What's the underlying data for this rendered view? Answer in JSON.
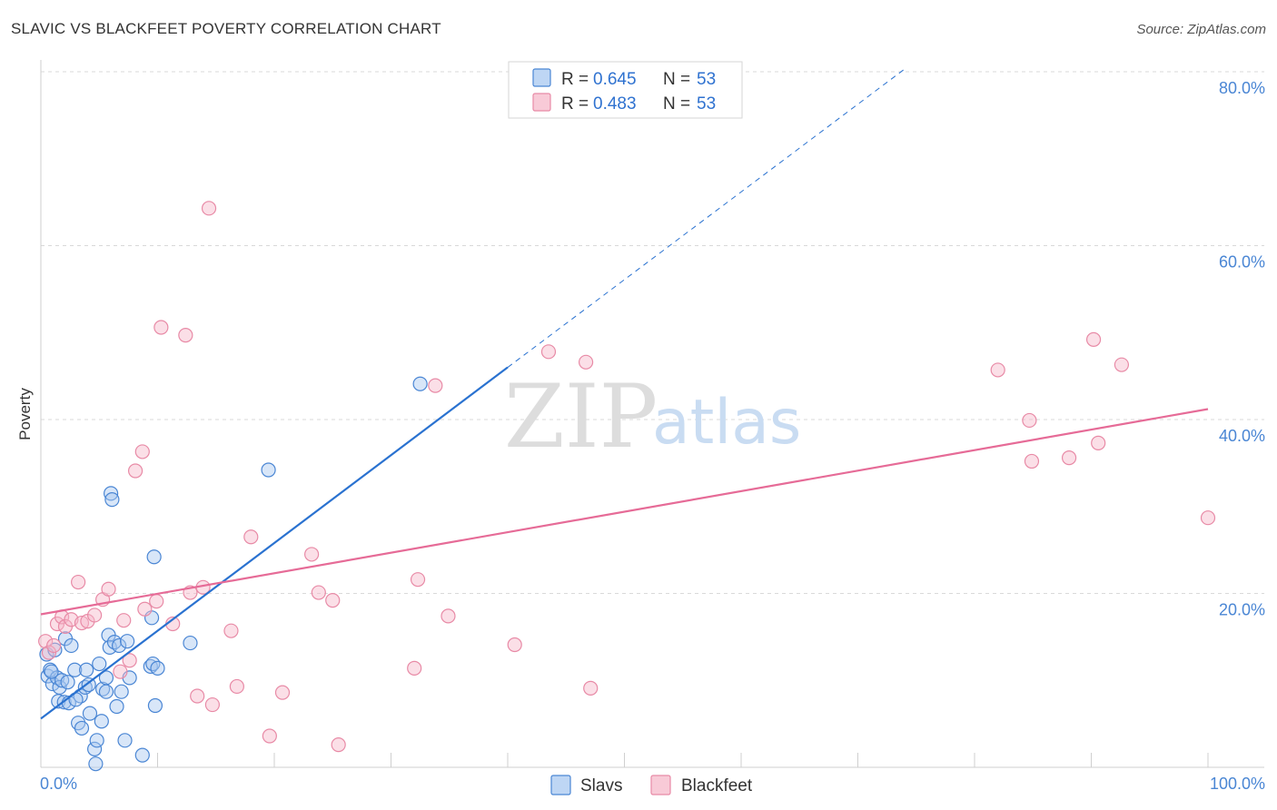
{
  "title": "SLAVIC VS BLACKFEET POVERTY CORRELATION CHART",
  "source": "Source: ZipAtlas.com",
  "watermark": {
    "zip": "ZIP",
    "atlas": "atlas"
  },
  "legend_top": [
    {
      "r_label": "R = ",
      "r_value": "0.645",
      "n_label": "N = ",
      "n_value": "53",
      "color": "#a8c8f0"
    },
    {
      "r_label": "R = ",
      "r_value": "0.483",
      "n_label": "N = ",
      "n_value": "53",
      "color": "#f6b8c9"
    }
  ],
  "legend_bottom": [
    {
      "label": "Slavs",
      "color": "#a8c8f0"
    },
    {
      "label": "Blackfeet",
      "color": "#f6b8c9"
    }
  ],
  "chart_data": {
    "type": "scatter",
    "title": "SLAVIC VS BLACKFEET POVERTY CORRELATION CHART",
    "xlabel": "",
    "ylabel": "Poverty",
    "xlim": [
      0,
      100
    ],
    "ylim": [
      0,
      80
    ],
    "x_tick_labels": [
      "0.0%",
      "100.0%"
    ],
    "y_ticks": [
      20,
      40,
      60,
      80
    ],
    "y_tick_labels": [
      "20.0%",
      "40.0%",
      "60.0%",
      "80.0%"
    ],
    "grid": true,
    "series": [
      {
        "name": "Slavs",
        "color": "#4a86d4",
        "fill": "#a8c8f0",
        "trend": {
          "x0": 0,
          "y0": 5.6,
          "x1": 40,
          "y1": 46.0,
          "dash_to_x": 74,
          "dash_to_y": 80.3,
          "color": "#2a72d0"
        },
        "points": [
          [
            0.5,
            13.0
          ],
          [
            0.6,
            10.5
          ],
          [
            0.8,
            11.2
          ],
          [
            1.0,
            9.6
          ],
          [
            1.4,
            10.3
          ],
          [
            1.6,
            9.2
          ],
          [
            1.8,
            10.0
          ],
          [
            1.5,
            7.6
          ],
          [
            2.0,
            7.5
          ],
          [
            2.4,
            7.4
          ],
          [
            2.1,
            14.8
          ],
          [
            2.6,
            14.0
          ],
          [
            2.9,
            11.2
          ],
          [
            3.2,
            5.1
          ],
          [
            3.5,
            4.5
          ],
          [
            3.4,
            8.2
          ],
          [
            3.8,
            9.2
          ],
          [
            3.9,
            11.2
          ],
          [
            4.2,
            6.2
          ],
          [
            4.6,
            2.1
          ],
          [
            4.7,
            0.4
          ],
          [
            4.8,
            3.1
          ],
          [
            5.0,
            11.9
          ],
          [
            5.3,
            9.0
          ],
          [
            5.6,
            8.7
          ],
          [
            5.2,
            5.3
          ],
          [
            5.6,
            10.3
          ],
          [
            5.8,
            15.2
          ],
          [
            5.9,
            13.8
          ],
          [
            6.0,
            31.5
          ],
          [
            6.1,
            30.8
          ],
          [
            6.3,
            14.4
          ],
          [
            6.5,
            7.0
          ],
          [
            6.7,
            14.0
          ],
          [
            6.9,
            8.7
          ],
          [
            7.2,
            3.1
          ],
          [
            7.4,
            14.5
          ],
          [
            7.6,
            10.3
          ],
          [
            8.7,
            1.4
          ],
          [
            9.4,
            11.6
          ],
          [
            9.5,
            17.2
          ],
          [
            9.6,
            11.9
          ],
          [
            9.7,
            24.2
          ],
          [
            9.8,
            7.1
          ],
          [
            10.0,
            11.4
          ],
          [
            12.8,
            14.3
          ],
          [
            19.5,
            34.2
          ],
          [
            32.5,
            44.1
          ],
          [
            1.2,
            13.5
          ],
          [
            0.9,
            11.0
          ],
          [
            2.3,
            9.8
          ],
          [
            4.1,
            9.5
          ],
          [
            3.0,
            7.8
          ]
        ]
      },
      {
        "name": "Blackfeet",
        "color": "#e88aa6",
        "fill": "#f6b8c9",
        "trend": {
          "x0": 0,
          "y0": 17.6,
          "x1": 100,
          "y1": 41.2,
          "color": "#e66b97"
        },
        "points": [
          [
            0.4,
            14.5
          ],
          [
            0.7,
            13.2
          ],
          [
            1.1,
            14.0
          ],
          [
            1.4,
            16.5
          ],
          [
            1.8,
            17.3
          ],
          [
            2.1,
            16.2
          ],
          [
            2.6,
            17.0
          ],
          [
            3.2,
            21.3
          ],
          [
            3.5,
            16.6
          ],
          [
            4.0,
            16.8
          ],
          [
            4.6,
            17.5
          ],
          [
            5.3,
            19.3
          ],
          [
            5.8,
            20.5
          ],
          [
            7.1,
            16.9
          ],
          [
            7.6,
            12.3
          ],
          [
            8.1,
            34.1
          ],
          [
            8.7,
            36.3
          ],
          [
            8.9,
            18.2
          ],
          [
            9.9,
            19.1
          ],
          [
            10.3,
            50.6
          ],
          [
            11.3,
            16.5
          ],
          [
            12.4,
            49.7
          ],
          [
            12.8,
            20.1
          ],
          [
            13.4,
            8.2
          ],
          [
            13.9,
            20.7
          ],
          [
            14.4,
            64.3
          ],
          [
            14.7,
            7.2
          ],
          [
            16.3,
            15.7
          ],
          [
            16.8,
            9.3
          ],
          [
            18.0,
            26.5
          ],
          [
            19.6,
            3.6
          ],
          [
            20.7,
            8.6
          ],
          [
            23.2,
            24.5
          ],
          [
            23.8,
            20.1
          ],
          [
            25.0,
            19.2
          ],
          [
            25.5,
            2.6
          ],
          [
            32.0,
            11.4
          ],
          [
            32.3,
            21.6
          ],
          [
            33.8,
            43.9
          ],
          [
            34.9,
            17.4
          ],
          [
            40.6,
            14.1
          ],
          [
            43.5,
            47.8
          ],
          [
            46.7,
            46.6
          ],
          [
            47.1,
            9.1
          ],
          [
            82.0,
            45.7
          ],
          [
            84.7,
            39.9
          ],
          [
            84.9,
            35.2
          ],
          [
            88.1,
            35.6
          ],
          [
            90.2,
            49.2
          ],
          [
            90.6,
            37.3
          ],
          [
            92.6,
            46.3
          ],
          [
            100.0,
            28.7
          ],
          [
            6.8,
            11.0
          ]
        ]
      }
    ]
  }
}
